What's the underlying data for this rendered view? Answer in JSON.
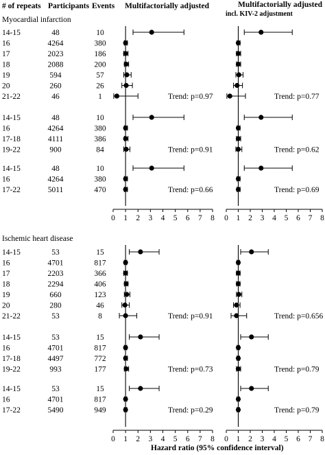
{
  "headers": {
    "repeats": "# of repeats",
    "participants": "Participants",
    "events": "Events",
    "panel1": "Multifactorially adjusted",
    "panel2_line1": "Multifactorially adjusted",
    "panel2_line2": "incl. KIV-2 adjustment"
  },
  "xlabel": "Hazard ratio (95% confidence interval)",
  "chart_data": {
    "type": "forest",
    "xlim": [
      0,
      8
    ],
    "xticks": [
      0,
      1,
      2,
      3,
      4,
      5,
      6,
      7,
      8
    ],
    "reference_line": 1,
    "outcomes": [
      {
        "title": "Myocardial infarction",
        "groups": [
          {
            "trend": [
              "Trend: p=0.97",
              "Trend: p=0.77"
            ],
            "rows": [
              {
                "repeats": "14-15",
                "participants": "48",
                "events": "10",
                "hr": [
                  [
                    3.1,
                    1.6,
                    5.7
                  ],
                  [
                    2.9,
                    1.5,
                    5.5
                  ]
                ]
              },
              {
                "repeats": "16",
                "participants": "4264",
                "events": "380",
                "hr": [
                  [
                    1.0,
                    0.9,
                    1.15
                  ],
                  [
                    1.0,
                    0.9,
                    1.15
                  ]
                ]
              },
              {
                "repeats": "17",
                "participants": "2023",
                "events": "186",
                "hr": [
                  [
                    1.0,
                    0.85,
                    1.2
                  ],
                  [
                    1.0,
                    0.85,
                    1.2
                  ]
                ]
              },
              {
                "repeats": "18",
                "participants": "2088",
                "events": "200",
                "hr": [
                  [
                    1.05,
                    0.9,
                    1.25
                  ],
                  [
                    1.0,
                    0.85,
                    1.2
                  ]
                ]
              },
              {
                "repeats": "19",
                "participants": "594",
                "events": "57",
                "hr": [
                  [
                    1.1,
                    0.85,
                    1.45
                  ],
                  [
                    1.05,
                    0.8,
                    1.4
                  ]
                ]
              },
              {
                "repeats": "20",
                "participants": "260",
                "events": "26",
                "hr": [
                  [
                    1.05,
                    0.7,
                    1.55
                  ],
                  [
                    0.9,
                    0.6,
                    1.35
                  ]
                ]
              },
              {
                "repeats": "21-22",
                "participants": "46",
                "events": "1",
                "hr": [
                  [
                    0.3,
                    0.05,
                    2.0
                  ],
                  [
                    0.3,
                    0.05,
                    1.6
                  ]
                ]
              }
            ]
          },
          {
            "trend": [
              "Trend: p=0.91",
              "Trend: p=0.62"
            ],
            "rows": [
              {
                "repeats": "14-15",
                "participants": "48",
                "events": "10",
                "hr": [
                  [
                    3.1,
                    1.6,
                    5.7
                  ],
                  [
                    2.9,
                    1.5,
                    5.5
                  ]
                ]
              },
              {
                "repeats": "16",
                "participants": "4264",
                "events": "380",
                "hr": [
                  [
                    1.0,
                    0.9,
                    1.15
                  ],
                  [
                    1.0,
                    0.9,
                    1.15
                  ]
                ]
              },
              {
                "repeats": "17-18",
                "participants": "4111",
                "events": "386",
                "hr": [
                  [
                    1.0,
                    0.9,
                    1.2
                  ],
                  [
                    1.0,
                    0.85,
                    1.2
                  ]
                ]
              },
              {
                "repeats": "19-22",
                "participants": "900",
                "events": "84",
                "hr": [
                  [
                    1.05,
                    0.85,
                    1.35
                  ],
                  [
                    1.0,
                    0.8,
                    1.3
                  ]
                ]
              }
            ]
          },
          {
            "trend": [
              "Trend: p=0.66",
              "Trend: p=0.69"
            ],
            "rows": [
              {
                "repeats": "14-15",
                "participants": "48",
                "events": "10",
                "hr": [
                  [
                    3.1,
                    1.6,
                    5.7
                  ],
                  [
                    2.9,
                    1.5,
                    5.5
                  ]
                ]
              },
              {
                "repeats": "16",
                "participants": "4264",
                "events": "380",
                "hr": [
                  [
                    1.0,
                    0.9,
                    1.15
                  ],
                  [
                    1.0,
                    0.9,
                    1.15
                  ]
                ]
              },
              {
                "repeats": "17-22",
                "participants": "5011",
                "events": "470",
                "hr": [
                  [
                    1.0,
                    0.9,
                    1.15
                  ],
                  [
                    1.0,
                    0.9,
                    1.15
                  ]
                ]
              }
            ]
          }
        ]
      },
      {
        "title": "Ischemic heart disease",
        "groups": [
          {
            "trend": [
              "Trend: p=0.91",
              "Trend: p=0.656"
            ],
            "rows": [
              {
                "repeats": "14-15",
                "participants": "53",
                "events": "15",
                "hr": [
                  [
                    2.2,
                    1.3,
                    3.7
                  ],
                  [
                    2.1,
                    1.2,
                    3.5
                  ]
                ]
              },
              {
                "repeats": "16",
                "participants": "4701",
                "events": "817",
                "hr": [
                  [
                    1.0,
                    0.9,
                    1.1
                  ],
                  [
                    1.0,
                    0.9,
                    1.1
                  ]
                ]
              },
              {
                "repeats": "17",
                "participants": "2203",
                "events": "366",
                "hr": [
                  [
                    1.0,
                    0.85,
                    1.15
                  ],
                  [
                    1.0,
                    0.85,
                    1.15
                  ]
                ]
              },
              {
                "repeats": "18",
                "participants": "2294",
                "events": "406",
                "hr": [
                  [
                    1.05,
                    0.9,
                    1.2
                  ],
                  [
                    1.0,
                    0.85,
                    1.15
                  ]
                ]
              },
              {
                "repeats": "19",
                "participants": "660",
                "events": "123",
                "hr": [
                  [
                    1.1,
                    0.9,
                    1.35
                  ],
                  [
                    1.05,
                    0.85,
                    1.3
                  ]
                ]
              },
              {
                "repeats": "20",
                "participants": "280",
                "events": "46",
                "hr": [
                  [
                    0.95,
                    0.7,
                    1.3
                  ],
                  [
                    0.85,
                    0.6,
                    1.15
                  ]
                ]
              },
              {
                "repeats": "21-22",
                "participants": "53",
                "events": "8",
                "hr": [
                  [
                    1.0,
                    0.5,
                    1.9
                  ],
                  [
                    0.85,
                    0.4,
                    1.7
                  ]
                ]
              }
            ]
          },
          {
            "trend": [
              "Trend: p=0.73",
              "Trend: p=0.79"
            ],
            "rows": [
              {
                "repeats": "14-15",
                "participants": "53",
                "events": "15",
                "hr": [
                  [
                    2.2,
                    1.3,
                    3.7
                  ],
                  [
                    2.1,
                    1.2,
                    3.5
                  ]
                ]
              },
              {
                "repeats": "16",
                "participants": "4701",
                "events": "817",
                "hr": [
                  [
                    1.0,
                    0.9,
                    1.1
                  ],
                  [
                    1.0,
                    0.9,
                    1.1
                  ]
                ]
              },
              {
                "repeats": "17-18",
                "participants": "4497",
                "events": "772",
                "hr": [
                  [
                    1.0,
                    0.9,
                    1.15
                  ],
                  [
                    1.0,
                    0.9,
                    1.1
                  ]
                ]
              },
              {
                "repeats": "19-22",
                "participants": "993",
                "events": "177",
                "hr": [
                  [
                    1.05,
                    0.9,
                    1.25
                  ],
                  [
                    1.0,
                    0.85,
                    1.2
                  ]
                ]
              }
            ]
          },
          {
            "trend": [
              "Trend: p=0.29",
              "Trend: p=0.79"
            ],
            "rows": [
              {
                "repeats": "14-15",
                "participants": "53",
                "events": "15",
                "hr": [
                  [
                    2.2,
                    1.3,
                    3.7
                  ],
                  [
                    2.1,
                    1.2,
                    3.5
                  ]
                ]
              },
              {
                "repeats": "16",
                "participants": "4701",
                "events": "817",
                "hr": [
                  [
                    1.0,
                    0.9,
                    1.1
                  ],
                  [
                    1.0,
                    0.9,
                    1.1
                  ]
                ]
              },
              {
                "repeats": "17-22",
                "participants": "5490",
                "events": "949",
                "hr": [
                  [
                    1.0,
                    0.9,
                    1.1
                  ],
                  [
                    1.0,
                    0.9,
                    1.1
                  ]
                ]
              }
            ]
          }
        ]
      }
    ]
  }
}
